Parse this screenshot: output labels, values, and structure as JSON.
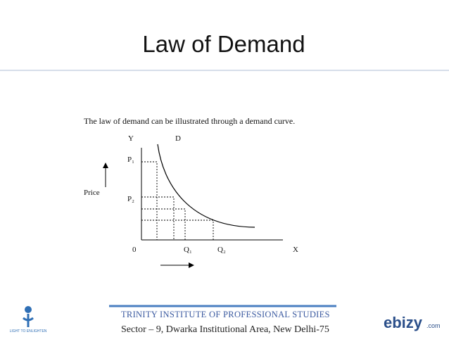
{
  "header": {
    "title": "Law of Demand"
  },
  "body": {
    "text": "The law of demand can be illustrated through a demand curve."
  },
  "diagram": {
    "y_axis": "Y",
    "x_axis": "X",
    "curve": "D",
    "origin": "0",
    "price_levels": [
      "P₁",
      "P₂"
    ],
    "quantity_levels": [
      "Q₁",
      "Q₂"
    ],
    "side_label": "Price"
  },
  "footer": {
    "institute": "TRINITY INSTITUTE OF PROFESSIONAL STUDIES",
    "address": "Sector – 9, Dwarka Institutional Area, New Delhi-75",
    "left_logo": "LIGHT TO ENLIGHTEN",
    "right_logo": "ebizy",
    "right_logo_suffix": ".com"
  }
}
